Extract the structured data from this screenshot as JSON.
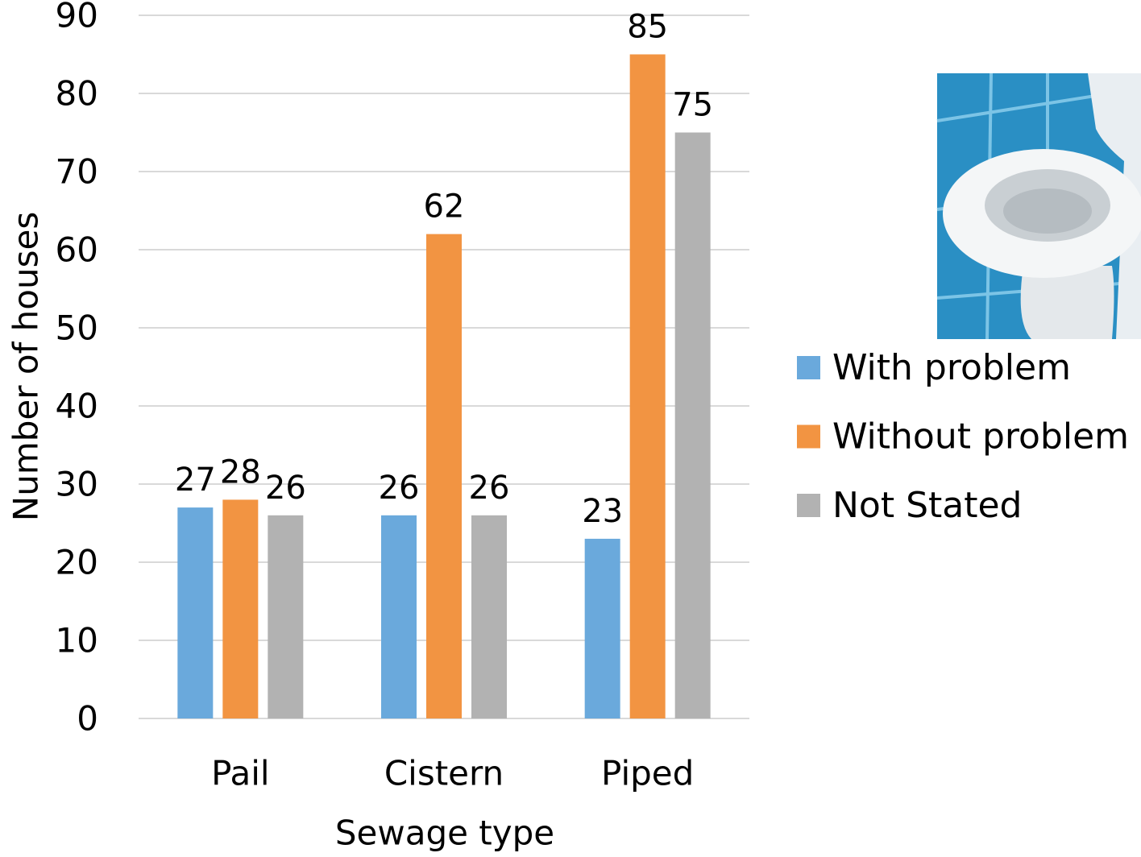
{
  "chart_data": {
    "type": "bar",
    "x_label": "Sewage type",
    "y_label": "Number of houses",
    "categories": [
      "Pail",
      "Cistern",
      "Piped"
    ],
    "series": [
      {
        "name": "With problem",
        "color": "#6aa9dc",
        "values": [
          27,
          26,
          23
        ]
      },
      {
        "name": "Without problem",
        "color": "#f29442",
        "values": [
          28,
          62,
          85
        ]
      },
      {
        "name": "Not Stated",
        "color": "#b2b2b2",
        "values": [
          26,
          26,
          75
        ]
      }
    ],
    "ylim": [
      0,
      90
    ],
    "yticks": [
      0,
      10,
      20,
      30,
      40,
      50,
      60,
      70,
      80,
      90
    ],
    "grid": true,
    "legend": "right"
  }
}
